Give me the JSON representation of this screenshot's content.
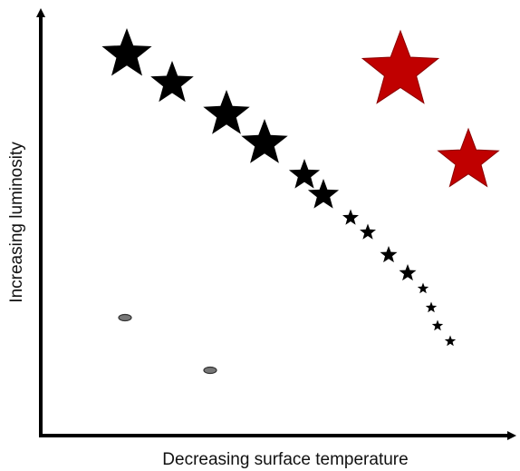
{
  "diagram": {
    "x_axis_label": "Decreasing surface temperature",
    "y_axis_label": "Increasing luminosity",
    "colors": {
      "axis": "#000000",
      "main_sequence_star": "#000000",
      "giant_star": "#c00000",
      "giant_star_outline": "#8b0000",
      "dwarf_fill": "#777777",
      "dwarf_outline": "#333333"
    },
    "groups": [
      "main-sequence-stars",
      "red-giant-stars",
      "white-dwarfs"
    ]
  }
}
